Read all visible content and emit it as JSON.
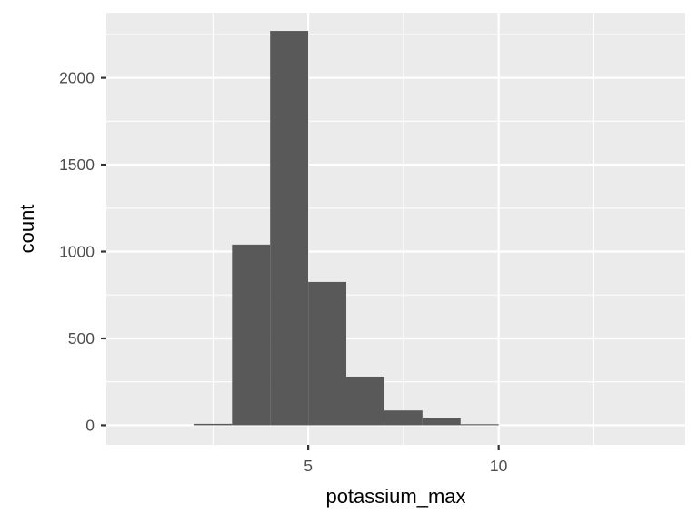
{
  "chart_data": {
    "type": "bar",
    "xlabel": "potassium_max",
    "ylabel": "count",
    "bin_width": 1,
    "bins": [
      {
        "x0": 2,
        "x1": 3,
        "count": 8
      },
      {
        "x0": 3,
        "x1": 4,
        "count": 1040
      },
      {
        "x0": 4,
        "x1": 5,
        "count": 2270
      },
      {
        "x0": 5,
        "x1": 6,
        "count": 825
      },
      {
        "x0": 6,
        "x1": 7,
        "count": 280
      },
      {
        "x0": 7,
        "x1": 8,
        "count": 85
      },
      {
        "x0": 8,
        "x1": 9,
        "count": 42
      },
      {
        "x0": 9,
        "x1": 10,
        "count": 6
      }
    ],
    "xlim": [
      -0.3,
      14.9
    ],
    "ylim": [
      -113,
      2375
    ],
    "x_ticks": [
      5,
      10
    ],
    "x_minor_ticks": [
      2.5,
      7.5,
      12.5
    ],
    "y_ticks": [
      0,
      500,
      1000,
      1500,
      2000
    ],
    "y_minor_ticks": [
      250,
      750,
      1250,
      1750,
      2250
    ],
    "grid": true,
    "legend": "none",
    "colors": {
      "panel": "#ebebeb",
      "grid": "#ffffff",
      "bar": "#595959",
      "tick": "#333333",
      "tick_label": "#4d4d4d",
      "title": "#000000"
    }
  }
}
